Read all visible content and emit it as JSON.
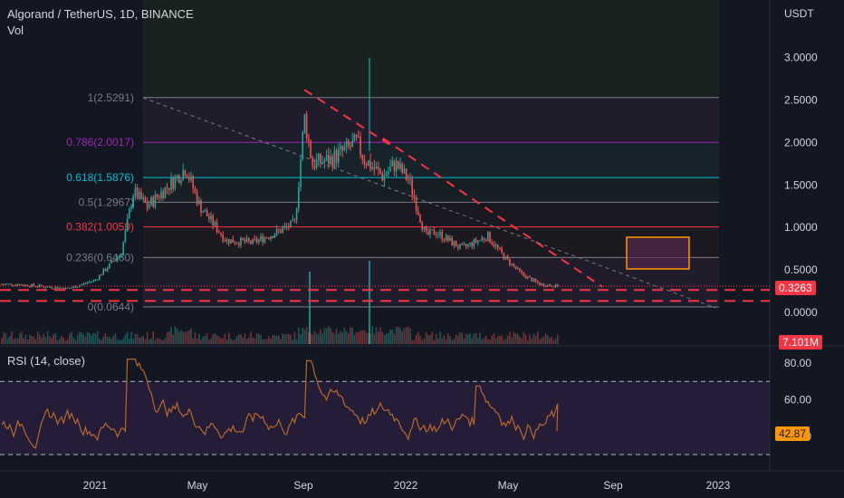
{
  "header": {
    "title": "Algorand / TetherUS, 1D, BINANCE",
    "volume_label": "Vol",
    "rsi_label": "RSI (14, close)",
    "price_unit": "USDT"
  },
  "price_tag": {
    "value": "0.3263",
    "color": "#f23645"
  },
  "volume_tag": {
    "value": "7.101M",
    "color": "#f23645"
  },
  "rsi_tag": {
    "value": "42.87",
    "color": "#ff9800"
  },
  "fib_levels": [
    {
      "label": "1(2.5291)",
      "value": 2.5291,
      "color": "#787b86"
    },
    {
      "label": "0.786(2.0017)",
      "value": 2.0017,
      "color": "#9c27b0"
    },
    {
      "label": "0.618(1.5876)",
      "value": 1.5876,
      "color": "#00bcd4"
    },
    {
      "label": "0.5(1.2967)",
      "value": 1.2967,
      "color": "#787b86"
    },
    {
      "label": "0.382(1.0059)",
      "value": 1.0059,
      "color": "#f23645"
    },
    {
      "label": "0.236(0.6460)",
      "value": 0.646,
      "color": "#787b86"
    },
    {
      "label": "0(0.0644)",
      "value": 0.0644,
      "color": "#787b86"
    }
  ],
  "colors": {
    "up": "#26a69a",
    "down": "#ef5350",
    "rsi_line": "#b4682f",
    "trend": "#f23645",
    "box": "#ff9800"
  },
  "chart_data": [
    {
      "type": "candlestick",
      "title": "Algorand / TetherUS, 1D, BINANCE",
      "ylabel": "USDT",
      "y_ticks": [
        "3.0000",
        "2.5000",
        "2.0000",
        "1.5000",
        "1.0000",
        "0.5000",
        "0.0000"
      ],
      "x_ticks": [
        "2021",
        "May",
        "Sep",
        "2022",
        "May",
        "Sep",
        "2023"
      ],
      "ylim": [
        -0.03,
        3.45
      ],
      "x": [
        "2020-10",
        "2020-12",
        "2021-01",
        "2021-02",
        "2021-02-15",
        "2021-03",
        "2021-04",
        "2021-04-15",
        "2021-05",
        "2021-06",
        "2021-07",
        "2021-08",
        "2021-08-20",
        "2021-09-01",
        "2021-09-10",
        "2021-10",
        "2021-11-01",
        "2021-11-10",
        "2021-12",
        "2021-12-15",
        "2022-01",
        "2022-01-20",
        "2022-02",
        "2022-03",
        "2022-04",
        "2022-04-20",
        "2022-05-10",
        "2022-06",
        "2022-06-20"
      ],
      "close": [
        0.33,
        0.28,
        0.38,
        0.7,
        1.42,
        1.25,
        1.55,
        1.7,
        1.25,
        0.85,
        0.82,
        0.95,
        1.05,
        2.3,
        1.75,
        1.8,
        2.0,
        1.8,
        1.6,
        1.75,
        1.55,
        0.9,
        0.95,
        0.75,
        0.9,
        0.65,
        0.45,
        0.33,
        0.31
      ],
      "high_max": 3.0,
      "trendlines": [
        {
          "from": [
            "2021-09-01",
            2.62
          ],
          "to": [
            "2021-11-01",
            1.95
          ]
        },
        {
          "from": [
            "2021-12-01",
            2.05
          ],
          "to": [
            "2022-07-01",
            0.3
          ]
        }
      ],
      "support_lines": [
        0.2,
        0.07
      ]
    },
    {
      "type": "line",
      "title": "RSI (14, close)",
      "y_ticks": [
        "80.00",
        "60.00",
        "40.00"
      ],
      "ylim": [
        26,
        88
      ],
      "bands": [
        70,
        30
      ],
      "last": 42.87
    }
  ]
}
